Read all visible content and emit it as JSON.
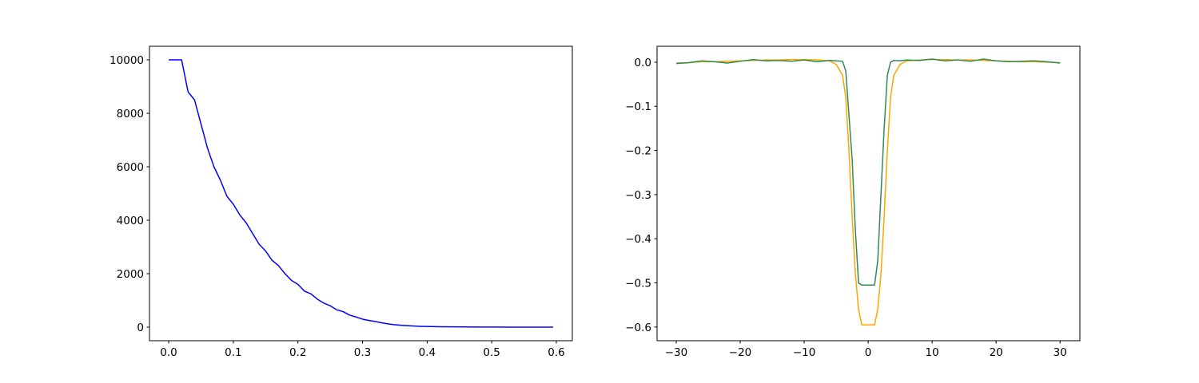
{
  "chart_data": [
    {
      "type": "line",
      "x": [
        0,
        0.01,
        0.02,
        0.03,
        0.04,
        0.05,
        0.06,
        0.07,
        0.08,
        0.09,
        0.1,
        0.11,
        0.12,
        0.13,
        0.14,
        0.15,
        0.16,
        0.17,
        0.18,
        0.19,
        0.2,
        0.21,
        0.22,
        0.23,
        0.24,
        0.25,
        0.26,
        0.27,
        0.28,
        0.29,
        0.3,
        0.31,
        0.32,
        0.33,
        0.34,
        0.35,
        0.36,
        0.37,
        0.38,
        0.39,
        0.4,
        0.42,
        0.44,
        0.46,
        0.48,
        0.5,
        0.53,
        0.56,
        0.595
      ],
      "series": [
        {
          "color": "#0000ff",
          "values": [
            10000,
            10000,
            10000,
            8800,
            8500,
            7600,
            6700,
            6000,
            5500,
            4900,
            4600,
            4200,
            3900,
            3500,
            3100,
            2850,
            2500,
            2300,
            2000,
            1750,
            1600,
            1350,
            1250,
            1050,
            900,
            800,
            650,
            580,
            450,
            380,
            300,
            250,
            210,
            160,
            120,
            90,
            70,
            55,
            40,
            30,
            25,
            15,
            10,
            6,
            4,
            3,
            2,
            1,
            0
          ]
        }
      ],
      "xlim": [
        -0.02975,
        0.62475
      ],
      "ylim": [
        -507,
        10507
      ],
      "xticks": [
        {
          "value": 0,
          "label": "0.0"
        },
        0.1,
        0.2,
        0.3,
        0.4,
        0.5,
        0.6
      ],
      "yticks": [
        0,
        2000,
        4000,
        6000,
        8000,
        10000
      ]
    },
    {
      "type": "line",
      "x": [
        -30,
        -28,
        -26,
        -24,
        -22,
        -20,
        -18,
        -16,
        -14,
        -12,
        -10,
        -8,
        -6,
        -5,
        -4,
        -3.5,
        -3,
        -2.5,
        -2,
        -1.5,
        -1,
        1,
        1.5,
        2,
        2.5,
        3,
        3.5,
        4,
        5,
        6,
        8,
        10,
        12,
        14,
        16,
        18,
        20,
        22,
        24,
        26,
        28,
        30
      ],
      "series": [
        {
          "color": "#ffa500",
          "values": [
            -0.002,
            -0.001,
            0.001,
            0.001,
            0.002,
            0.003,
            0.004,
            0.005,
            0.005,
            0.006,
            0.006,
            0.005,
            0.003,
            -0.005,
            -0.03,
            -0.08,
            -0.2,
            -0.35,
            -0.48,
            -0.56,
            -0.595,
            -0.595,
            -0.56,
            -0.48,
            -0.35,
            -0.2,
            -0.08,
            -0.03,
            -0.005,
            0.003,
            0.005,
            0.006,
            0.006,
            0.005,
            0.005,
            0.004,
            0.003,
            0.002,
            0.001,
            0.001,
            0,
            -0.001
          ]
        },
        {
          "color": "#2e8b57",
          "values": [
            -0.003,
            -0.001,
            0.003,
            0.001,
            -0.002,
            0.002,
            0.006,
            0.003,
            0.004,
            0.002,
            0.005,
            0.001,
            0.004,
            0.003,
            0.002,
            -0.02,
            -0.12,
            -0.22,
            -0.38,
            -0.5,
            -0.505,
            -0.505,
            -0.45,
            -0.3,
            -0.15,
            -0.03,
            0,
            0.004,
            0.003,
            0.005,
            0.004,
            0.007,
            0.003,
            0.005,
            0.002,
            0.007,
            0.003,
            0.001,
            0.002,
            0.003,
            0.001,
            -0.002
          ]
        }
      ],
      "xlim": [
        -33,
        33.1
      ],
      "ylim": [
        -0.631,
        0.036
      ],
      "xticks": [
        {
          "value": -30,
          "label": "−30"
        },
        {
          "value": -20,
          "label": "−20"
        },
        {
          "value": -10,
          "label": "−10"
        },
        0,
        10,
        20,
        30
      ],
      "yticks": [
        {
          "value": 0,
          "label": "0.0"
        },
        {
          "value": -0.1,
          "label": "−0.1"
        },
        {
          "value": -0.2,
          "label": "−0.2"
        },
        {
          "value": -0.3,
          "label": "−0.3"
        },
        {
          "value": -0.4,
          "label": "−0.4"
        },
        {
          "value": -0.5,
          "label": "−0.5"
        },
        {
          "value": -0.6,
          "label": "−0.6"
        }
      ]
    }
  ]
}
